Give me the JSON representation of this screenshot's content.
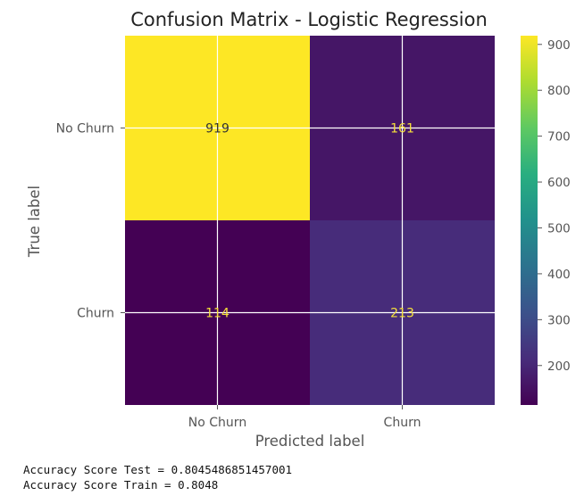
{
  "chart_data": {
    "type": "heatmap",
    "title": "Confusion Matrix - Logistic Regression",
    "xlabel": "Predicted label",
    "ylabel": "True label",
    "x_categories": [
      "No Churn",
      "Churn"
    ],
    "y_categories": [
      "No Churn",
      "Churn"
    ],
    "matrix": [
      [
        919,
        161
      ],
      [
        114,
        213
      ]
    ],
    "colormap": "viridis",
    "colorbar": {
      "min": 114,
      "max": 919,
      "ticks": [
        200,
        300,
        400,
        500,
        600,
        700,
        800,
        900
      ]
    },
    "grid": true,
    "colors": {
      "cell_text_dark": "#333333",
      "cell_text_light": "#f5e03a",
      "grid": "#ffffff"
    }
  },
  "output": {
    "lines": [
      "Accuracy Score Test = 0.8045486851457001",
      "Accuracy Score Train = 0.8048"
    ]
  }
}
